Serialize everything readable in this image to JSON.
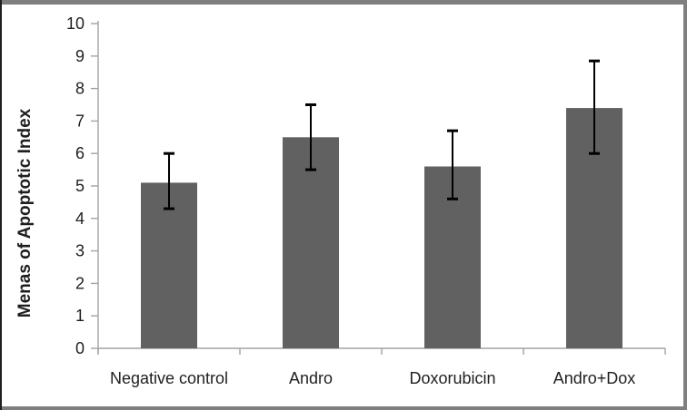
{
  "chart_data": {
    "type": "bar",
    "title": "",
    "xlabel": "",
    "ylabel": "Menas of Apoptotic Index",
    "categories": [
      "Negative control",
      "Andro",
      "Doxorubicin",
      "Andro+Dox"
    ],
    "values": [
      5.1,
      6.5,
      5.6,
      7.4
    ],
    "error_bars": {
      "upper": [
        6.0,
        7.5,
        6.7,
        8.85
      ],
      "lower": [
        4.3,
        5.5,
        4.6,
        6.0
      ]
    },
    "ylim": [
      0,
      10
    ],
    "yticks": [
      "0",
      "1",
      "2",
      "3",
      "4",
      "5",
      "6",
      "7",
      "8",
      "9",
      "10"
    ],
    "grid": false,
    "legend_position": "none",
    "colors": {
      "bar_fill": "#616161",
      "axis_line": "#a3a3a3",
      "error_bar": "#000000",
      "text": "#1f1f1f"
    }
  },
  "frame": {
    "border_color": "#7f7f7f",
    "left_border_color": "#1f1f1f",
    "background": "#ffffff"
  }
}
